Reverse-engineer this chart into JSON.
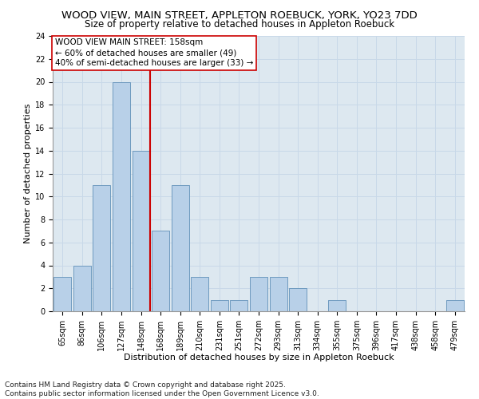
{
  "title1": "WOOD VIEW, MAIN STREET, APPLETON ROEBUCK, YORK, YO23 7DD",
  "title2": "Size of property relative to detached houses in Appleton Roebuck",
  "xlabel": "Distribution of detached houses by size in Appleton Roebuck",
  "ylabel": "Number of detached properties",
  "categories": [
    "65sqm",
    "86sqm",
    "106sqm",
    "127sqm",
    "148sqm",
    "168sqm",
    "189sqm",
    "210sqm",
    "231sqm",
    "251sqm",
    "272sqm",
    "293sqm",
    "313sqm",
    "334sqm",
    "355sqm",
    "375sqm",
    "396sqm",
    "417sqm",
    "438sqm",
    "458sqm",
    "479sqm"
  ],
  "values": [
    3,
    4,
    11,
    20,
    14,
    7,
    11,
    3,
    1,
    1,
    3,
    3,
    2,
    0,
    1,
    0,
    0,
    0,
    0,
    0,
    1
  ],
  "bar_color": "#b8d0e8",
  "bar_edge_color": "#6090b8",
  "vline_color": "#cc0000",
  "vline_index": 4,
  "annotation_text": "WOOD VIEW MAIN STREET: 158sqm\n← 60% of detached houses are smaller (49)\n40% of semi-detached houses are larger (33) →",
  "annotation_boxcolor": "white",
  "annotation_edgecolor": "#cc0000",
  "ylim": [
    0,
    24
  ],
  "yticks": [
    0,
    2,
    4,
    6,
    8,
    10,
    12,
    14,
    16,
    18,
    20,
    22,
    24
  ],
  "grid_color": "#c8d8e8",
  "bg_color": "#dde8f0",
  "footnote": "Contains HM Land Registry data © Crown copyright and database right 2025.\nContains public sector information licensed under the Open Government Licence v3.0.",
  "title1_fontsize": 9.5,
  "title2_fontsize": 8.5,
  "xlabel_fontsize": 8,
  "ylabel_fontsize": 8,
  "tick_fontsize": 7,
  "annotation_fontsize": 7.5,
  "footnote_fontsize": 6.5
}
